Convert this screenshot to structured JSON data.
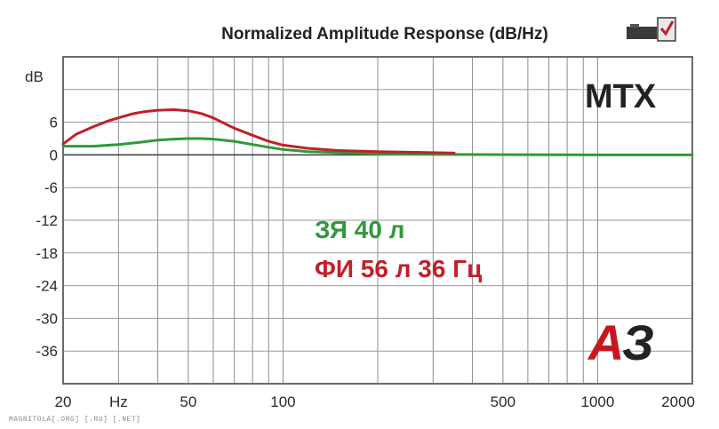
{
  "chart_data": {
    "type": "line",
    "title": "Normalized Amplitude Response (dB/Hz)",
    "xscale": "log",
    "xlim": [
      20,
      2000
    ],
    "ylim": [
      -42,
      18
    ],
    "ylabel": "dB",
    "x_ticks": [
      {
        "value": 20,
        "label": "20"
      },
      {
        "value": 30,
        "label": "Hz"
      },
      {
        "value": 50,
        "label": "50"
      },
      {
        "value": 100,
        "label": "100"
      },
      {
        "value": 500,
        "label": "500"
      },
      {
        "value": 1000,
        "label": "1000"
      },
      {
        "value": 2000,
        "label": "2000"
      }
    ],
    "y_ticks": [
      12,
      6,
      0,
      -6,
      -12,
      -18,
      -24,
      -30,
      -36
    ],
    "y_tick_labels": [
      "",
      "6",
      "0",
      "-6",
      "-12",
      "-18",
      "-24",
      "-30",
      "-36"
    ],
    "grid": true,
    "series": [
      {
        "name": "ЗЯ 40 л",
        "color": "#2f9a3a",
        "points": [
          [
            20,
            1.6
          ],
          [
            25,
            1.6
          ],
          [
            30,
            1.9
          ],
          [
            35,
            2.3
          ],
          [
            40,
            2.7
          ],
          [
            45,
            2.9
          ],
          [
            50,
            3.0
          ],
          [
            55,
            3.0
          ],
          [
            60,
            2.9
          ],
          [
            70,
            2.5
          ],
          [
            80,
            1.9
          ],
          [
            90,
            1.4
          ],
          [
            100,
            1.0
          ],
          [
            120,
            0.6
          ],
          [
            150,
            0.4
          ],
          [
            200,
            0.2
          ],
          [
            300,
            0.1
          ],
          [
            500,
            0.05
          ],
          [
            1000,
            0.0
          ],
          [
            2000,
            0.0
          ]
        ]
      },
      {
        "name": "ФИ 56 л 36 Гц",
        "color": "#c0202a",
        "points": [
          [
            20,
            2.0
          ],
          [
            22,
            3.8
          ],
          [
            25,
            5.2
          ],
          [
            28,
            6.3
          ],
          [
            30,
            6.8
          ],
          [
            33,
            7.5
          ],
          [
            36,
            7.9
          ],
          [
            40,
            8.2
          ],
          [
            45,
            8.3
          ],
          [
            50,
            8.1
          ],
          [
            55,
            7.6
          ],
          [
            60,
            6.8
          ],
          [
            65,
            5.8
          ],
          [
            70,
            4.9
          ],
          [
            80,
            3.6
          ],
          [
            90,
            2.5
          ],
          [
            100,
            1.8
          ],
          [
            120,
            1.2
          ],
          [
            150,
            0.8
          ],
          [
            200,
            0.6
          ],
          [
            300,
            0.4
          ],
          [
            350,
            0.35
          ]
        ]
      }
    ],
    "brand_label": "MTX",
    "logo_text": "АЗ",
    "watermark": "MAGNITOLA[.ORG] [.RU] [.NET]"
  },
  "colors": {
    "frame": "#6b6b6b",
    "grid": "#8c8c8c",
    "green": "#2f9a3a",
    "red": "#c0202a",
    "logo_red": "#c8161f",
    "logo_dark": "#222222"
  }
}
